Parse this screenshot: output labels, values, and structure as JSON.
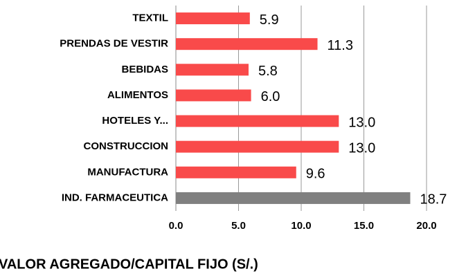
{
  "chart_data": {
    "type": "bar",
    "orientation": "horizontal",
    "title": "VALOR AGREGADO/CAPITAL FIJO (S/.)",
    "categories": [
      "TEXTIL",
      "PRENDAS DE VESTIR",
      "BEBIDAS",
      "ALIMENTOS",
      "HOTELES Y...",
      "CONSTRUCCION",
      "MANUFACTURA",
      "IND. FARMACEUTICA"
    ],
    "values": [
      5.9,
      11.3,
      5.8,
      6.0,
      13.0,
      13.0,
      9.6,
      18.7
    ],
    "value_labels": [
      "5.9",
      "11.3",
      "5.8",
      "6.0",
      "13.0",
      "13.0",
      "9.6",
      "18.7"
    ],
    "colors": [
      "#f94a4a",
      "#f94a4a",
      "#f94a4a",
      "#f94a4a",
      "#f94a4a",
      "#f94a4a",
      "#f94a4a",
      "#808080"
    ],
    "xlim": [
      0,
      20
    ],
    "xticks": [
      {
        "value": 0,
        "label": "0.0"
      },
      {
        "value": 5,
        "label": "5.0"
      },
      {
        "value": 10,
        "label": "10.0"
      },
      {
        "value": 15,
        "label": "15.0"
      },
      {
        "value": 20,
        "label": "20.0"
      }
    ],
    "grid": true
  }
}
